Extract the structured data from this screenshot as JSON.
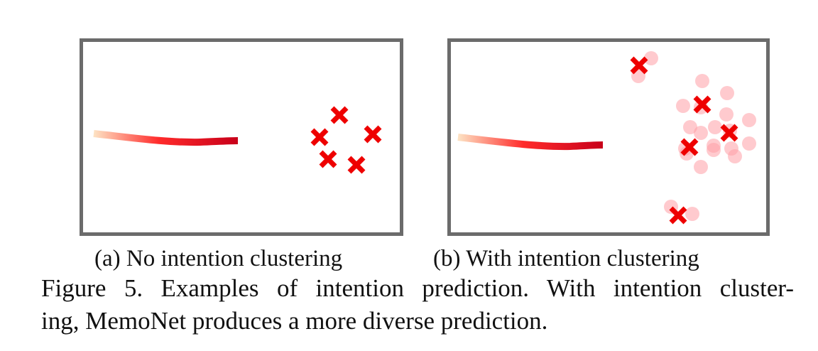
{
  "figure": {
    "panels": [
      {
        "id": "a",
        "caption": "(a) No intention clustering",
        "trajectory_color_start": "#fde3c4",
        "trajectory_color_end": "#c8001a"
      },
      {
        "id": "b",
        "caption": "(b) With intention clustering",
        "trajectory_color_start": "#fde3c4",
        "trajectory_color_end": "#c8001a"
      }
    ],
    "caption_line_1": "Figure 5. Examples of intention prediction. With intention cluster-",
    "caption_line_2": "ing, MemoNet produces a more diverse prediction.",
    "colors": {
      "border": "#6b6b6b",
      "marker": "#ee0000",
      "candidate": "#ff9fa6"
    },
    "icons": {
      "prediction_marker": "x-mark-icon",
      "candidate_point": "circle-icon"
    }
  }
}
